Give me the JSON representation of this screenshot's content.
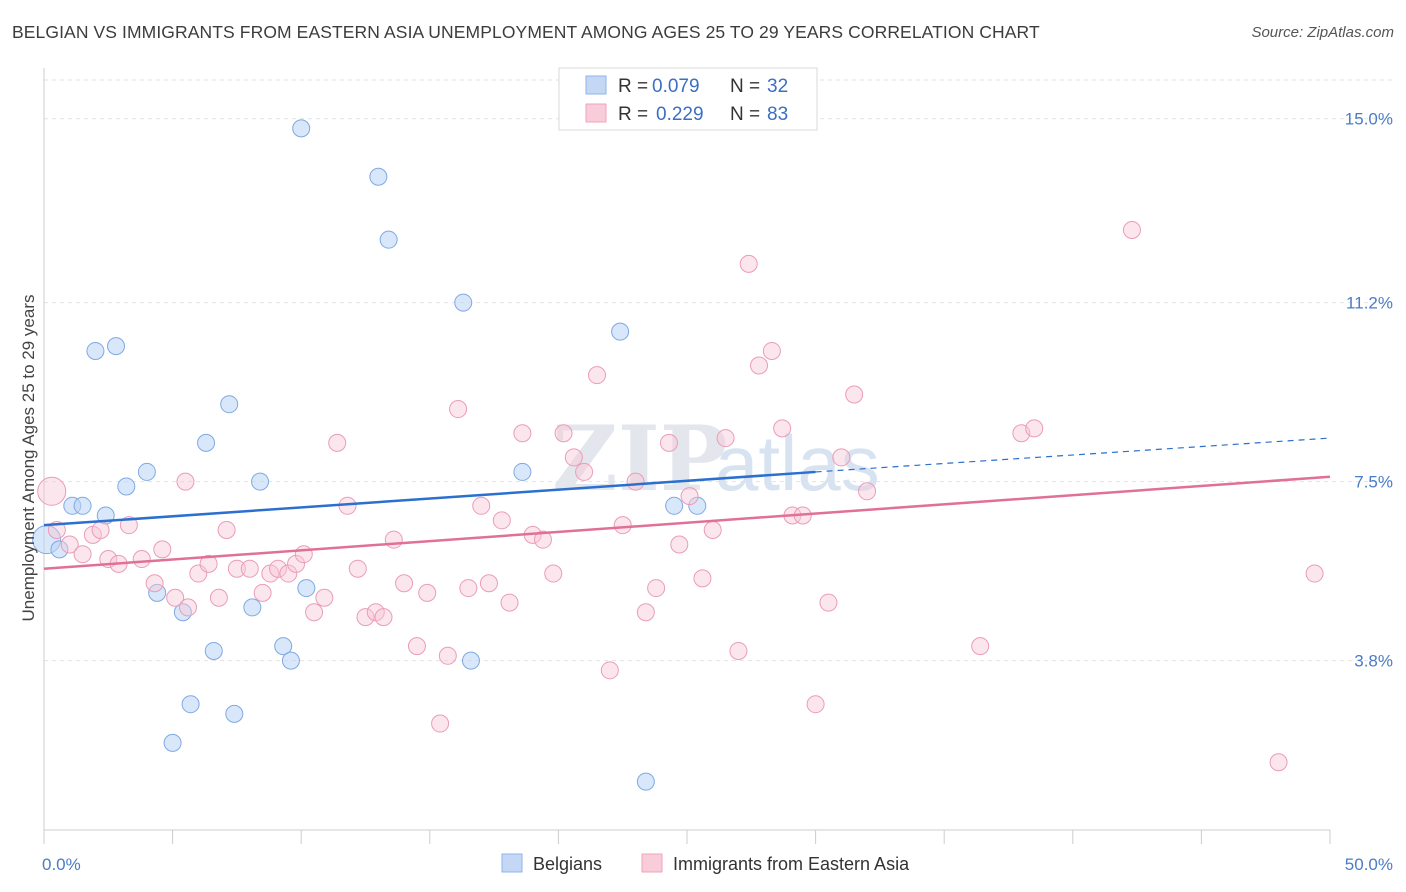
{
  "title": "BELGIAN VS IMMIGRANTS FROM EASTERN ASIA UNEMPLOYMENT AMONG AGES 25 TO 29 YEARS CORRELATION CHART",
  "source": "Source: ZipAtlas.com",
  "watermark": {
    "zip": "ZIP",
    "atlas": "atlas"
  },
  "legend_top": [
    {
      "r_label": "R =",
      "r_value": "0.079",
      "n_label": "N =",
      "n_value": "32"
    },
    {
      "r_label": "R =",
      "r_value": "0.229",
      "n_label": "N =",
      "n_value": "83"
    }
  ],
  "chart_data": {
    "type": "scatter",
    "title": "BELGIAN VS IMMIGRANTS FROM EASTERN ASIA UNEMPLOYMENT AMONG AGES 25 TO 29 YEARS CORRELATION CHART",
    "xlabel": "",
    "ylabel": "Unemployment Among Ages 25 to 29 years",
    "xlim": [
      0,
      50
    ],
    "ylim": [
      0.3,
      15.8
    ],
    "x_tick_labels": [
      "0.0%",
      "50.0%"
    ],
    "y_ticks": [
      3.8,
      7.5,
      11.2,
      15.0
    ],
    "y_tick_labels": [
      "3.8%",
      "7.5%",
      "11.2%",
      "15.0%"
    ],
    "grid": true,
    "legend_position": "top-center",
    "colors": {
      "belgians": "#8db4ea",
      "eastern_asia": "#f0a2bc",
      "belgians_line": "#2b6fcf",
      "eastern_asia_line": "#e07098"
    },
    "series": [
      {
        "name": "Belgians",
        "r": 0.079,
        "n": 32,
        "trend": {
          "x": [
            0,
            30
          ],
          "y": [
            6.6,
            7.7
          ],
          "dashed_to": [
            50,
            8.4
          ]
        },
        "points": [
          [
            0.1,
            6.3
          ],
          [
            0.6,
            6.1
          ],
          [
            1.1,
            7.0
          ],
          [
            1.5,
            7.0
          ],
          [
            2.4,
            6.8
          ],
          [
            2.0,
            10.2
          ],
          [
            2.8,
            10.3
          ],
          [
            3.2,
            7.4
          ],
          [
            4.0,
            7.7
          ],
          [
            4.4,
            5.2
          ],
          [
            5.4,
            4.8
          ],
          [
            5.0,
            2.1
          ],
          [
            5.7,
            2.9
          ],
          [
            6.3,
            8.3
          ],
          [
            6.6,
            4.0
          ],
          [
            7.2,
            9.1
          ],
          [
            7.4,
            2.7
          ],
          [
            8.1,
            4.9
          ],
          [
            8.4,
            7.5
          ],
          [
            9.3,
            4.1
          ],
          [
            9.6,
            3.8
          ],
          [
            10.2,
            5.3
          ],
          [
            10.0,
            14.8
          ],
          [
            13.0,
            13.8
          ],
          [
            13.4,
            12.5
          ],
          [
            16.3,
            11.2
          ],
          [
            16.6,
            3.8
          ],
          [
            18.6,
            7.7
          ],
          [
            22.4,
            10.6
          ],
          [
            23.4,
            1.3
          ],
          [
            24.5,
            7.0
          ],
          [
            25.4,
            7.0
          ]
        ]
      },
      {
        "name": "Immigrants from Eastern Asia",
        "r": 0.229,
        "n": 83,
        "trend": {
          "x": [
            0,
            50
          ],
          "y": [
            5.7,
            7.6
          ]
        },
        "points": [
          [
            0.3,
            7.3
          ],
          [
            0.5,
            6.5
          ],
          [
            1.0,
            6.2
          ],
          [
            1.5,
            6.0
          ],
          [
            1.9,
            6.4
          ],
          [
            2.2,
            6.5
          ],
          [
            2.5,
            5.9
          ],
          [
            2.9,
            5.8
          ],
          [
            3.3,
            6.6
          ],
          [
            3.8,
            5.9
          ],
          [
            4.3,
            5.4
          ],
          [
            4.6,
            6.1
          ],
          [
            5.1,
            5.1
          ],
          [
            5.6,
            4.9
          ],
          [
            5.5,
            7.5
          ],
          [
            6.0,
            5.6
          ],
          [
            6.4,
            5.8
          ],
          [
            6.8,
            5.1
          ],
          [
            7.1,
            6.5
          ],
          [
            7.5,
            5.7
          ],
          [
            8.0,
            5.7
          ],
          [
            8.5,
            5.2
          ],
          [
            8.8,
            5.6
          ],
          [
            9.1,
            5.7
          ],
          [
            9.5,
            5.6
          ],
          [
            9.8,
            5.8
          ],
          [
            10.1,
            6.0
          ],
          [
            10.5,
            4.8
          ],
          [
            10.9,
            5.1
          ],
          [
            11.4,
            8.3
          ],
          [
            11.8,
            7.0
          ],
          [
            12.2,
            5.7
          ],
          [
            12.5,
            4.7
          ],
          [
            12.9,
            4.8
          ],
          [
            13.2,
            4.7
          ],
          [
            13.6,
            6.3
          ],
          [
            14.0,
            5.4
          ],
          [
            14.5,
            4.1
          ],
          [
            14.9,
            5.2
          ],
          [
            15.4,
            2.5
          ],
          [
            15.7,
            3.9
          ],
          [
            16.1,
            9.0
          ],
          [
            16.5,
            5.3
          ],
          [
            17.0,
            7.0
          ],
          [
            17.3,
            5.4
          ],
          [
            17.8,
            6.7
          ],
          [
            18.1,
            5.0
          ],
          [
            18.6,
            8.5
          ],
          [
            19.0,
            6.4
          ],
          [
            19.4,
            6.3
          ],
          [
            19.8,
            5.6
          ],
          [
            20.2,
            8.5
          ],
          [
            20.6,
            8.0
          ],
          [
            21.0,
            7.7
          ],
          [
            21.5,
            9.7
          ],
          [
            22.0,
            3.6
          ],
          [
            22.5,
            6.6
          ],
          [
            23.0,
            7.5
          ],
          [
            23.4,
            4.8
          ],
          [
            23.8,
            5.3
          ],
          [
            24.3,
            8.3
          ],
          [
            24.7,
            6.2
          ],
          [
            25.1,
            7.2
          ],
          [
            25.6,
            5.5
          ],
          [
            26.0,
            6.5
          ],
          [
            26.5,
            8.4
          ],
          [
            27.0,
            4.0
          ],
          [
            27.4,
            12.0
          ],
          [
            27.8,
            9.9
          ],
          [
            28.3,
            10.2
          ],
          [
            28.7,
            8.6
          ],
          [
            29.1,
            6.8
          ],
          [
            29.5,
            6.8
          ],
          [
            30.0,
            2.9
          ],
          [
            30.5,
            5.0
          ],
          [
            31.0,
            8.0
          ],
          [
            31.5,
            9.3
          ],
          [
            32.0,
            7.3
          ],
          [
            36.4,
            4.1
          ],
          [
            38.0,
            8.5
          ],
          [
            38.5,
            8.6
          ],
          [
            42.3,
            12.7
          ],
          [
            49.4,
            5.6
          ],
          [
            48.0,
            1.7
          ]
        ]
      }
    ]
  },
  "bottom_legend": [
    {
      "label": "Belgians"
    },
    {
      "label": "Immigrants from Eastern Asia"
    }
  ]
}
